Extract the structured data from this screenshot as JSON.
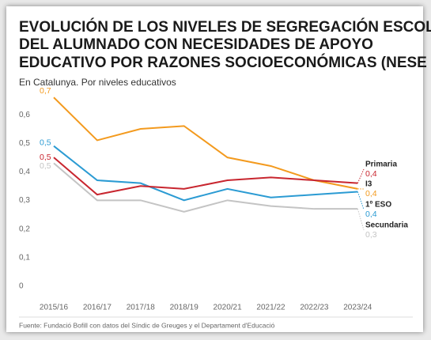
{
  "chart_data": {
    "type": "line",
    "title": [
      "EVOLUCIÓN DE LOS NIVELES DE SEGREGACIÓN ESCOLAR",
      "DEL ALUMNADO CON NECESIDADES DE APOYO",
      "EDUCATIVO POR RAZONES SOCIOECONÓMICAS (NESE B)"
    ],
    "subtitle": "En Catalunya. Por niveles educativos",
    "source": "Fuente: Fundació Bofill con datos del Síndic de Greuges y el Departament d'Educació",
    "categories": [
      "2015/16",
      "2016/17",
      "2017/18",
      "2018/19",
      "2020/21",
      "2021/22",
      "2022/23",
      "2023/24"
    ],
    "ylim": [
      0,
      0.7
    ],
    "yticks": [
      0,
      {
        "value": 0.1,
        "label": "0,1"
      },
      {
        "value": 0.2,
        "label": "0,2"
      },
      {
        "value": 0.3,
        "label": "0,3"
      },
      {
        "value": 0.4,
        "label": "0,4"
      },
      {
        "value": 0.5,
        "label": "0,5"
      },
      {
        "value": 0.6,
        "label": "0,6"
      }
    ],
    "grid": false,
    "series": [
      {
        "name": "I3",
        "color": "#f39a1e",
        "values": [
          0.68,
          0.53,
          0.57,
          0.58,
          0.47,
          0.44,
          0.39,
          0.36
        ],
        "value_labels": [
          "0,7",
          null,
          null,
          null,
          null,
          null,
          null,
          "0,4"
        ]
      },
      {
        "name": "1º ESO",
        "color": "#2b9bd3",
        "values": [
          0.51,
          0.39,
          0.38,
          0.32,
          0.36,
          0.33,
          0.34,
          0.35
        ],
        "value_labels": [
          "0,5",
          null,
          null,
          null,
          null,
          null,
          null,
          "0,4"
        ]
      },
      {
        "name": "Primaria",
        "color": "#c8262f",
        "values": [
          0.47,
          0.34,
          0.37,
          0.36,
          0.39,
          0.4,
          0.39,
          0.38
        ],
        "value_labels": [
          "0,5",
          null,
          null,
          null,
          null,
          null,
          null,
          "0,4"
        ]
      },
      {
        "name": "Secundaria",
        "color": "#c4c4c4",
        "values": [
          0.45,
          0.32,
          0.32,
          0.28,
          0.32,
          0.3,
          0.29,
          0.29
        ],
        "value_labels": [
          "0,5",
          null,
          null,
          null,
          null,
          null,
          null,
          "0,3"
        ]
      }
    ]
  }
}
